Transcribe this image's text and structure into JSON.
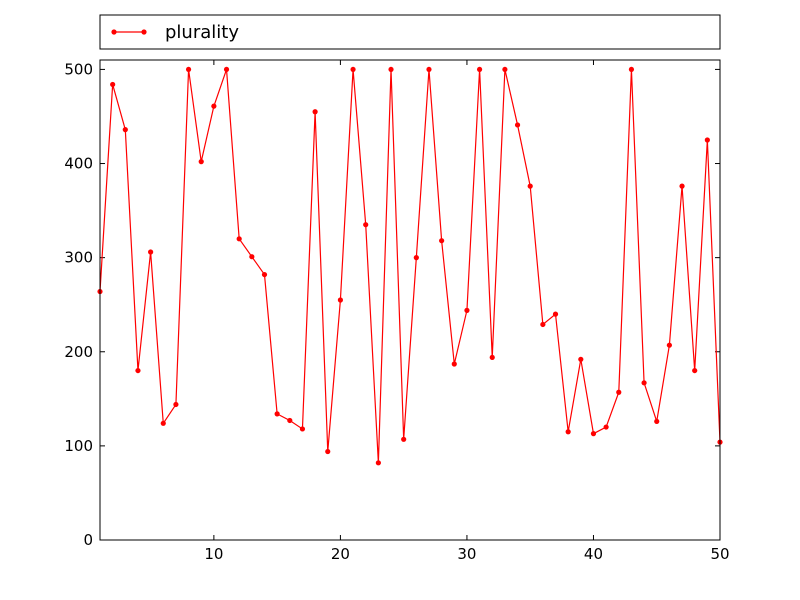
{
  "chart_data": {
    "type": "line",
    "title": "",
    "xlabel": "",
    "ylabel": "",
    "xlim": [
      1,
      50
    ],
    "ylim": [
      0,
      510
    ],
    "xticks": [
      10,
      20,
      30,
      40,
      50
    ],
    "xtick_labels": [
      "10",
      "20",
      "30",
      "40",
      "50"
    ],
    "yticks": [
      0,
      100,
      200,
      300,
      400,
      500
    ],
    "ytick_labels": [
      "0",
      "100",
      "200",
      "300",
      "400",
      "500"
    ],
    "grid": false,
    "legend_position": "top, above plot",
    "series": [
      {
        "name": "plurality",
        "color": "#ff0000",
        "marker": "dot",
        "x": [
          1,
          2,
          3,
          4,
          5,
          6,
          7,
          8,
          9,
          10,
          11,
          12,
          13,
          14,
          15,
          16,
          17,
          18,
          19,
          20,
          21,
          22,
          23,
          24,
          25,
          26,
          27,
          28,
          29,
          30,
          31,
          32,
          33,
          34,
          35,
          36,
          37,
          38,
          39,
          40,
          41,
          42,
          43,
          44,
          45,
          46,
          47,
          48,
          49,
          50
        ],
        "y": [
          264,
          484,
          436,
          180,
          306,
          124,
          144,
          500,
          402,
          461,
          500,
          320,
          301,
          282,
          134,
          127,
          118,
          455,
          94,
          255,
          500,
          335,
          82,
          500,
          107,
          300,
          500,
          318,
          187,
          244,
          500,
          194,
          500,
          441,
          376,
          229,
          240,
          115,
          192,
          113,
          120,
          157,
          500,
          167,
          126,
          207,
          376,
          180,
          425,
          104
        ]
      }
    ]
  }
}
